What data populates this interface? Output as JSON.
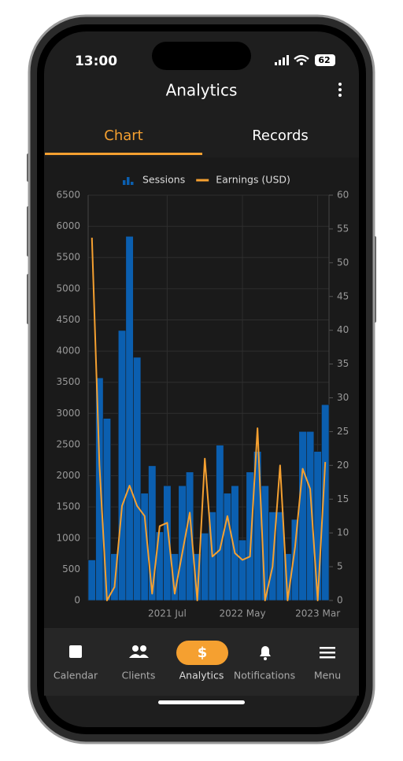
{
  "status_bar": {
    "time": "13:00",
    "battery": "62"
  },
  "header": {
    "title": "Analytics"
  },
  "tabs": [
    "Chart",
    "Records"
  ],
  "chart_data": {
    "type": "bar",
    "categories": [
      null,
      null,
      null,
      null,
      null,
      null,
      null,
      null,
      null,
      null,
      "2021 Jul",
      null,
      null,
      null,
      null,
      null,
      null,
      null,
      null,
      null,
      "2022 May",
      null,
      null,
      null,
      null,
      null,
      null,
      null,
      null,
      null,
      "2023 Mar",
      null
    ],
    "series": [
      {
        "name": "Sessions",
        "color": "#0b5fb0",
        "values": [
          650,
          3570,
          2920,
          750,
          4330,
          5840,
          3900,
          1720,
          2160,
          1100,
          1840,
          750,
          1840,
          2060,
          750,
          1080,
          1420,
          2490,
          1720,
          1840,
          970,
          2060,
          2390,
          1840,
          1420,
          1420,
          750,
          1300,
          2710,
          2710,
          2390,
          3140
        ]
      },
      {
        "name": "Earnings (USD)",
        "color": "#f5a030",
        "type": "line",
        "axis": "y2",
        "values": [
          53.7,
          20,
          0,
          2,
          14,
          17,
          14,
          12.5,
          1,
          11,
          11.5,
          1,
          7,
          13,
          0,
          21,
          6.5,
          7.5,
          12.5,
          7,
          6,
          6.5,
          25.5,
          0,
          5,
          20,
          0,
          8,
          19.5,
          16.5,
          0,
          20.5
        ]
      }
    ],
    "ylim": [
      0,
      6500
    ],
    "yticks": [
      0,
      500,
      1000,
      1500,
      2000,
      2500,
      3000,
      3500,
      4000,
      4500,
      5000,
      5500,
      6000,
      6500
    ],
    "y2lim": [
      0,
      60
    ],
    "y2ticks": [
      0,
      5,
      10,
      15,
      20,
      25,
      30,
      35,
      40,
      45,
      50,
      55,
      60
    ],
    "grid": true,
    "legend": "top"
  },
  "nav": [
    "Calendar",
    "Clients",
    "Analytics",
    "Notifications",
    "Menu"
  ]
}
